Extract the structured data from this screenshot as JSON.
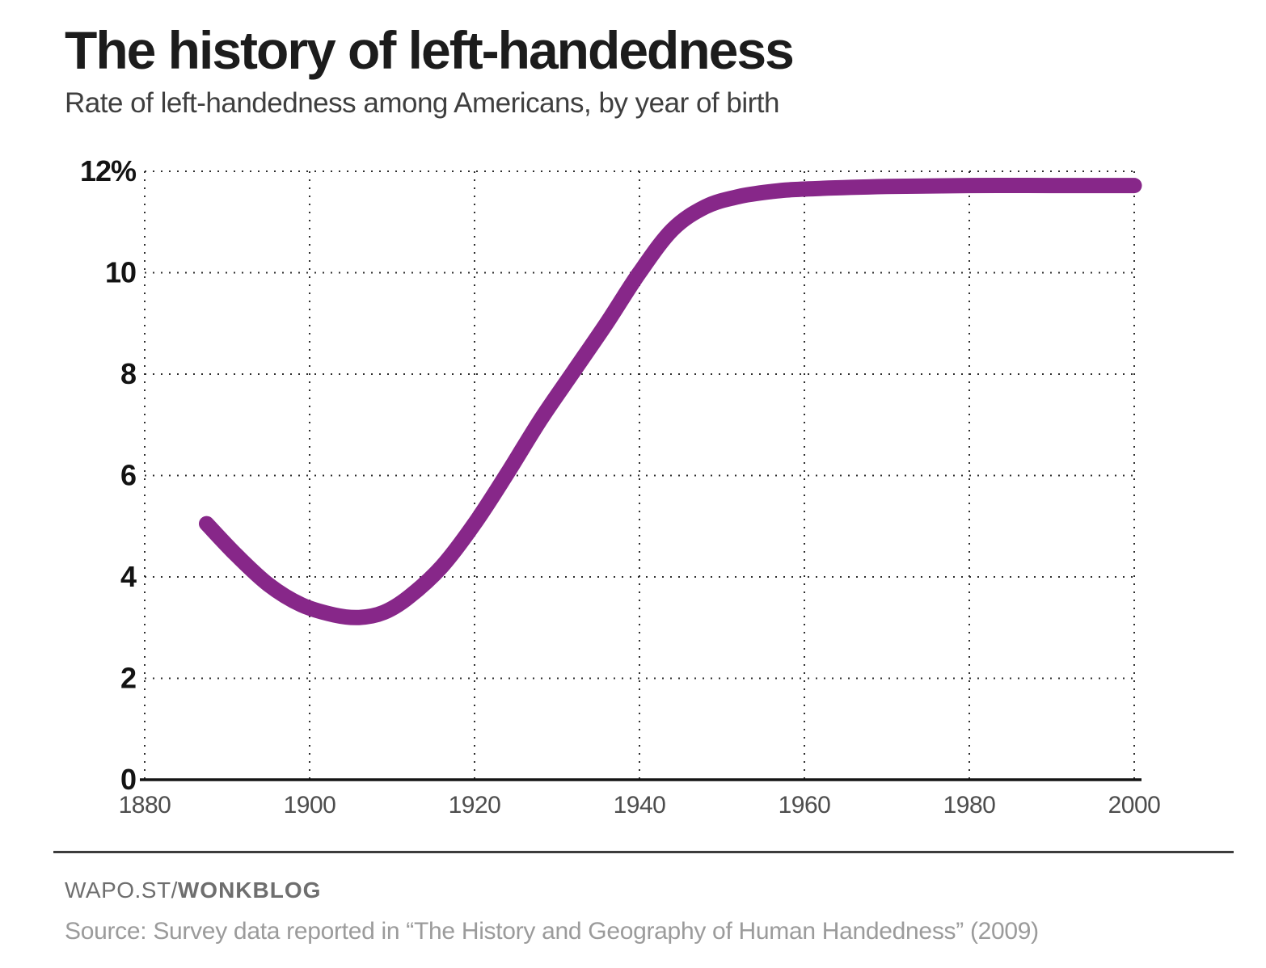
{
  "header": {
    "title": "The history of left-handedness",
    "subtitle": "Rate of left-handedness among Americans, by year of birth"
  },
  "footer": {
    "brand_prefix": "WAPO.ST/",
    "brand_bold": "WONKBLOG",
    "source": "Source: Survey data reported in “The History and Geography of Human Handedness” (2009)"
  },
  "chart_data": {
    "type": "line",
    "title": "The history of left-handedness",
    "subtitle": "Rate of left-handedness among Americans, by year of birth",
    "xlabel": "",
    "ylabel": "",
    "xlim": [
      1880,
      2000
    ],
    "ylim": [
      0,
      12
    ],
    "grid": "dotted",
    "legend": "none",
    "line_color": "#872789",
    "line_width": 19,
    "x_ticks": [
      1880,
      1900,
      1920,
      1940,
      1960,
      1980,
      2000
    ],
    "y_ticks": [
      {
        "value": 12,
        "label": "12%"
      },
      {
        "value": 10,
        "label": "10"
      },
      {
        "value": 8,
        "label": "8"
      },
      {
        "value": 6,
        "label": "6"
      },
      {
        "value": 4,
        "label": "4"
      },
      {
        "value": 2,
        "label": "2"
      },
      {
        "value": 0,
        "label": "0"
      }
    ],
    "series": [
      {
        "name": "Rate of left-handedness",
        "points": [
          [
            1887.5,
            5.05
          ],
          [
            1891,
            4.45
          ],
          [
            1895,
            3.85
          ],
          [
            1899,
            3.45
          ],
          [
            1903,
            3.25
          ],
          [
            1906,
            3.2
          ],
          [
            1909,
            3.3
          ],
          [
            1912,
            3.6
          ],
          [
            1916,
            4.2
          ],
          [
            1920,
            5.05
          ],
          [
            1924,
            6.05
          ],
          [
            1928,
            7.1
          ],
          [
            1932,
            8.05
          ],
          [
            1936,
            9.0
          ],
          [
            1940,
            10.0
          ],
          [
            1944,
            10.85
          ],
          [
            1948,
            11.3
          ],
          [
            1952,
            11.5
          ],
          [
            1956,
            11.6
          ],
          [
            1960,
            11.65
          ],
          [
            1970,
            11.7
          ],
          [
            1980,
            11.72
          ],
          [
            1990,
            11.72
          ],
          [
            2000,
            11.72
          ]
        ]
      }
    ]
  }
}
